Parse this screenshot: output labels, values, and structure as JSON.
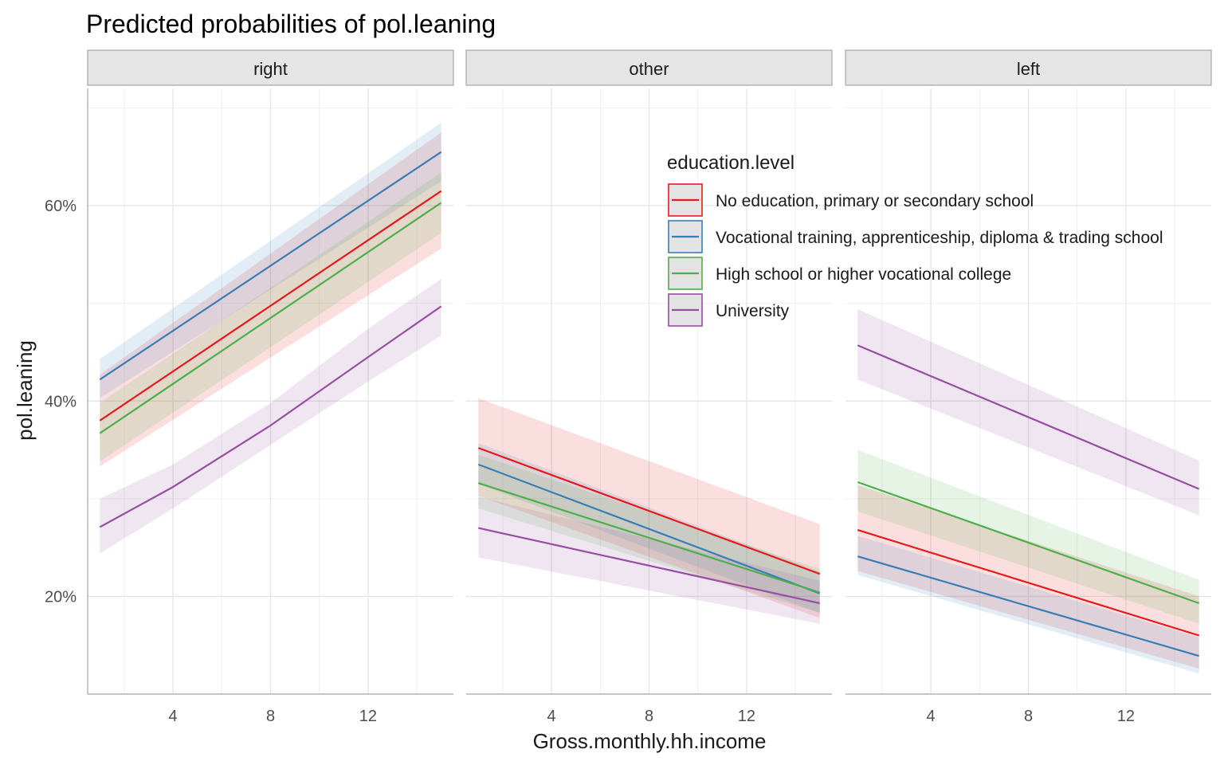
{
  "chart_data": {
    "type": "line",
    "title": "Predicted probabilities of pol.leaning",
    "xlabel": "Gross.monthly.hh.income",
    "ylabel": "pol.leaning",
    "xlim": [
      0.5,
      15.5
    ],
    "ylim": [
      0.1,
      0.72
    ],
    "x_ticks": [
      4,
      8,
      12
    ],
    "x_tick_labels": [
      "4",
      "8",
      "12"
    ],
    "y_ticks": [
      0.2,
      0.4,
      0.6
    ],
    "y_tick_labels": [
      "20%",
      "40%",
      "60%"
    ],
    "grid": true,
    "legend": {
      "title": "education.level",
      "placement": "inside-top-right",
      "entries": [
        "No education, primary or secondary school",
        "Vocational training, apprenticeship, diploma & trading school",
        "High school or higher vocational college",
        "University"
      ]
    },
    "colors": [
      "#e41a1c",
      "#377eb8",
      "#4daf4a",
      "#984ea3"
    ],
    "panels": [
      {
        "label": "right",
        "series": [
          {
            "name": "No education, primary or secondary school",
            "x": [
              1,
              15
            ],
            "y": [
              0.38,
              0.615
            ],
            "lower": [
              0.333,
              0.556
            ],
            "upper": [
              0.427,
              0.675
            ]
          },
          {
            "name": "Vocational training, apprenticeship, diploma & trading school",
            "x": [
              1,
              15
            ],
            "y": [
              0.422,
              0.655
            ],
            "lower": [
              0.403,
              0.625
            ],
            "upper": [
              0.443,
              0.685
            ]
          },
          {
            "name": "High school or higher vocational college",
            "x": [
              1,
              15
            ],
            "y": [
              0.367,
              0.603
            ],
            "lower": [
              0.338,
              0.572
            ],
            "upper": [
              0.398,
              0.634
            ]
          },
          {
            "name": "University",
            "x": [
              1,
              4,
              8,
              12,
              15
            ],
            "y": [
              0.271,
              0.312,
              0.375,
              0.445,
              0.497
            ],
            "lower": [
              0.244,
              0.29,
              0.355,
              0.42,
              0.467
            ],
            "upper": [
              0.3,
              0.335,
              0.398,
              0.474,
              0.525
            ]
          }
        ]
      },
      {
        "label": "other",
        "series": [
          {
            "name": "No education, primary or secondary school",
            "x": [
              1,
              15
            ],
            "y": [
              0.352,
              0.223
            ],
            "lower": [
              0.303,
              0.178
            ],
            "upper": [
              0.403,
              0.274
            ]
          },
          {
            "name": "Vocational training, apprenticeship, diploma & trading school",
            "x": [
              1,
              15
            ],
            "y": [
              0.335,
              0.203
            ],
            "lower": [
              0.315,
              0.183
            ],
            "upper": [
              0.357,
              0.225
            ]
          },
          {
            "name": "High school or higher vocational college",
            "x": [
              1,
              15
            ],
            "y": [
              0.316,
              0.204
            ],
            "lower": [
              0.29,
              0.183
            ],
            "upper": [
              0.345,
              0.228
            ]
          },
          {
            "name": "University",
            "x": [
              1,
              15
            ],
            "y": [
              0.27,
              0.193
            ],
            "lower": [
              0.24,
              0.172
            ],
            "upper": [
              0.302,
              0.216
            ]
          }
        ]
      },
      {
        "label": "left",
        "series": [
          {
            "name": "No education, primary or secondary school",
            "x": [
              1,
              15
            ],
            "y": [
              0.268,
              0.16
            ],
            "lower": [
              0.226,
              0.126
            ],
            "upper": [
              0.314,
              0.2
            ]
          },
          {
            "name": "Vocational training, apprenticeship, diploma & trading school",
            "x": [
              1,
              15
            ],
            "y": [
              0.241,
              0.139
            ],
            "lower": [
              0.222,
              0.121
            ],
            "upper": [
              0.262,
              0.158
            ]
          },
          {
            "name": "High school or higher vocational college",
            "x": [
              1,
              15
            ],
            "y": [
              0.317,
              0.193
            ],
            "lower": [
              0.287,
              0.172
            ],
            "upper": [
              0.35,
              0.217
            ]
          },
          {
            "name": "University",
            "x": [
              1,
              15
            ],
            "y": [
              0.457,
              0.31
            ],
            "lower": [
              0.422,
              0.283
            ],
            "upper": [
              0.494,
              0.339
            ]
          }
        ]
      }
    ]
  }
}
